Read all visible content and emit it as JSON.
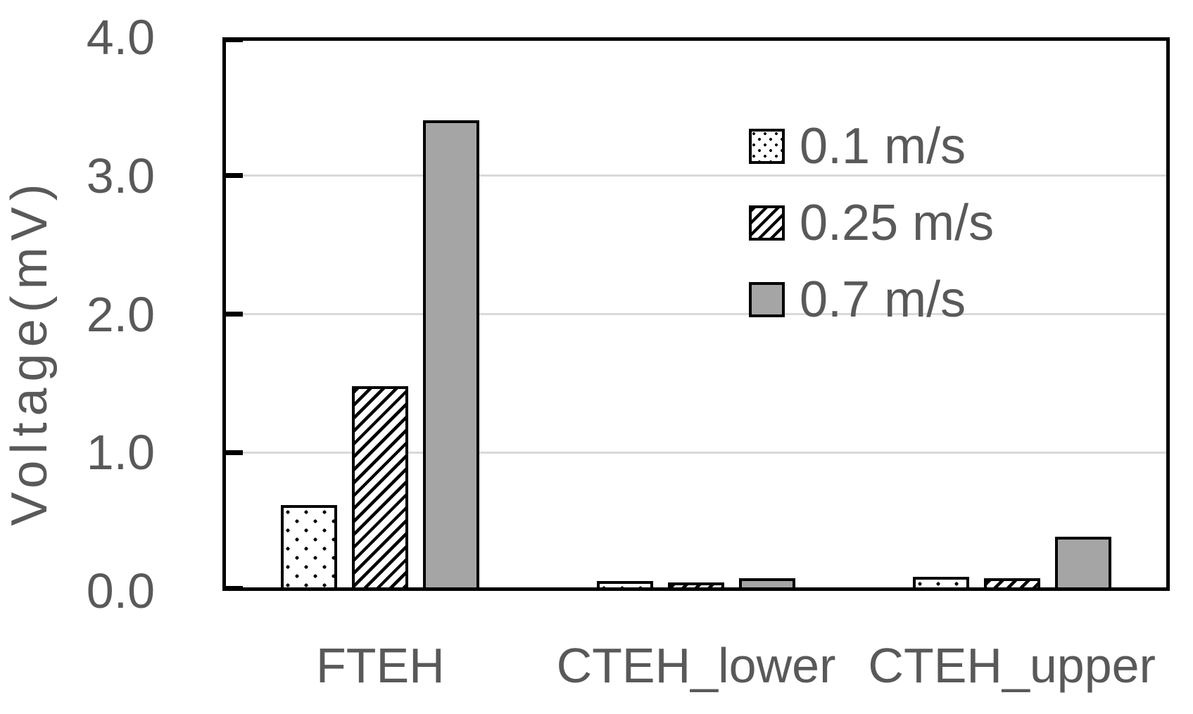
{
  "chart_data": {
    "type": "bar",
    "title": "",
    "xlabel": "",
    "ylabel": "Voltage(mV)",
    "categories": [
      "FTEH",
      "CTEH_lower",
      "CTEH_upper"
    ],
    "series": [
      {
        "name": "0.1 m/s",
        "pattern": "dots",
        "values": [
          0.62,
          0.07,
          0.1
        ]
      },
      {
        "name": "0.25 m/s",
        "pattern": "hatch",
        "values": [
          1.48,
          0.06,
          0.09
        ]
      },
      {
        "name": "0.7 m/s",
        "pattern": "solid",
        "values": [
          3.4,
          0.09,
          0.39
        ]
      }
    ],
    "ylim": [
      0.0,
      4.0
    ],
    "yticks": [
      0.0,
      1.0,
      2.0,
      3.0,
      4.0
    ],
    "ytick_labels": [
      "0.0",
      "1.0",
      "2.0",
      "3.0",
      "4.0"
    ],
    "grid": true,
    "gridlines_at": [
      1.0,
      2.0,
      3.0
    ],
    "legend_position": "inside-top-right",
    "legend_items": [
      "0.1 m/s",
      "0.25 m/s",
      "0.7 m/s"
    ],
    "colors": {
      "solid_bar_fill": "#a5a5a5",
      "bar_outline": "#000000",
      "pattern_foreground": "#000000",
      "pattern_background": "#ffffff",
      "gridline": "#d9d9d9",
      "axis_line": "#000000",
      "text": "#595959",
      "background": "#ffffff"
    }
  }
}
